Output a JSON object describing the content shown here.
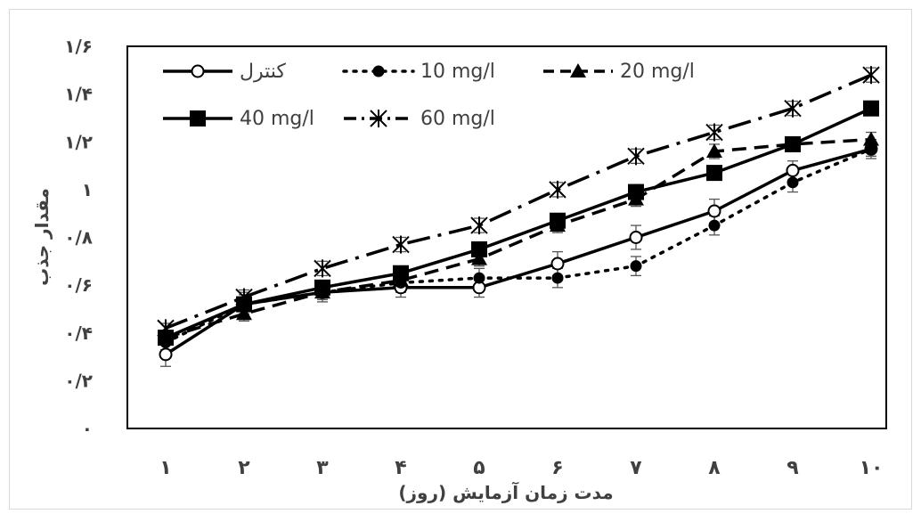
{
  "chart_data": {
    "type": "line",
    "title": "",
    "xlabel": "مدت زمان آزمایش (روز)",
    "ylabel": "مقدار جذب",
    "x": [
      1,
      2,
      3,
      4,
      5,
      6,
      7,
      8,
      9,
      10
    ],
    "x_tick_labels": [
      "۱",
      "۲",
      "۳",
      "۴",
      "۵",
      "۶",
      "۷",
      "۸",
      "۹",
      "۱۰"
    ],
    "ylim": [
      0,
      1.6
    ],
    "y_ticks": [
      0,
      0.2,
      0.4,
      0.6,
      0.8,
      1.0,
      1.2,
      1.4,
      1.6
    ],
    "y_tick_labels": [
      "۰",
      "۰/۲",
      "۰/۴",
      "۰/۶",
      "۰/۸",
      "۱",
      "۱/۲",
      "۱/۴",
      "۱/۶"
    ],
    "grid": false,
    "legend_position": "top-left inside",
    "series": [
      {
        "name": "کنترل",
        "marker": "circle-open",
        "line_style": "solid",
        "values": [
          0.31,
          0.52,
          0.57,
          0.59,
          0.59,
          0.69,
          0.8,
          0.91,
          1.08,
          1.17
        ],
        "error": [
          0.05,
          0.05,
          0.04,
          0.04,
          0.04,
          0.05,
          0.05,
          0.05,
          0.04,
          0.04
        ]
      },
      {
        "name": "10 mg/l",
        "marker": "circle-filled",
        "line_style": "dotted",
        "values": [
          0.36,
          0.52,
          0.57,
          0.61,
          0.63,
          0.63,
          0.68,
          0.85,
          1.03,
          1.17
        ],
        "error": [
          0.03,
          0.04,
          0.03,
          0.04,
          0.04,
          0.04,
          0.04,
          0.04,
          0.04,
          0.03
        ]
      },
      {
        "name": "20 mg/l",
        "marker": "triangle-filled",
        "line_style": "dashed",
        "values": [
          0.38,
          0.48,
          0.57,
          0.62,
          0.71,
          0.85,
          0.96,
          1.16,
          1.19,
          1.21
        ],
        "error": [
          0.02,
          0.03,
          0.03,
          0.03,
          0.03,
          0.03,
          0.03,
          0.03,
          0.03,
          0.03
        ]
      },
      {
        "name": "40 mg/l",
        "marker": "square-filled",
        "line_style": "solid",
        "values": [
          0.38,
          0.52,
          0.59,
          0.65,
          0.75,
          0.87,
          0.99,
          1.07,
          1.19,
          1.34
        ],
        "error": [
          0.02,
          0.03,
          0.03,
          0.03,
          0.03,
          0.03,
          0.03,
          0.03,
          0.03,
          0.03
        ]
      },
      {
        "name": "60 mg/l",
        "marker": "star",
        "line_style": "dash-dot",
        "values": [
          0.42,
          0.55,
          0.67,
          0.77,
          0.85,
          1.0,
          1.14,
          1.24,
          1.34,
          1.48
        ],
        "error": [
          0.02,
          0.03,
          0.03,
          0.03,
          0.03,
          0.03,
          0.03,
          0.03,
          0.03,
          0.03
        ]
      }
    ],
    "colors": {
      "line": "#000000",
      "axis_text": "#404040",
      "error_bar": "#555555"
    }
  }
}
